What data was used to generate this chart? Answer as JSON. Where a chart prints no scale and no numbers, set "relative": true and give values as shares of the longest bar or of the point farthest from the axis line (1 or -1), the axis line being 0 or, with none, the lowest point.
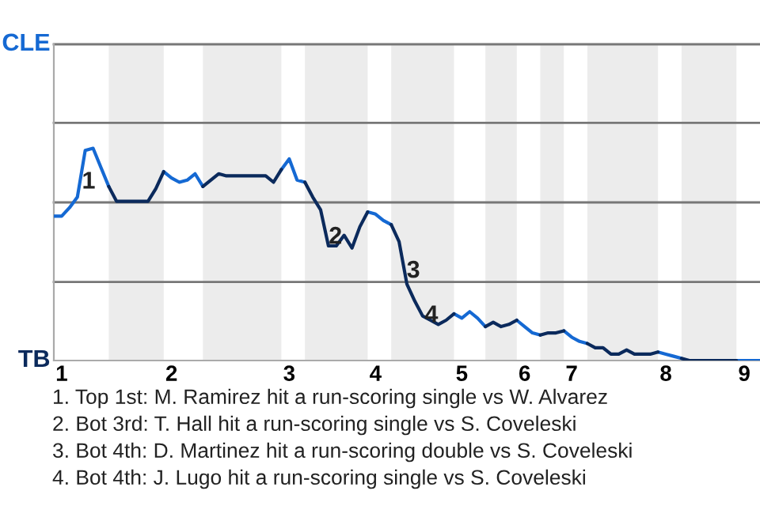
{
  "chart_data": {
    "type": "line",
    "relative": true,
    "categories": [
      null,
      "1",
      null,
      null,
      null,
      null,
      null,
      null,
      null,
      null,
      null,
      null,
      null,
      null,
      null,
      "2",
      null,
      null,
      null,
      null,
      null,
      null,
      null,
      null,
      null,
      null,
      null,
      null,
      null,
      null,
      "3",
      null,
      null,
      null,
      null,
      null,
      null,
      null,
      null,
      null,
      null,
      "4",
      null,
      null,
      null,
      null,
      null,
      null,
      null,
      null,
      null,
      null,
      "5",
      null,
      null,
      null,
      null,
      null,
      null,
      null,
      "6",
      null,
      null,
      null,
      null,
      null,
      "7",
      null,
      null,
      null,
      null,
      null,
      null,
      null,
      null,
      null,
      null,
      null,
      "8",
      null,
      null,
      null,
      null,
      null,
      null,
      null,
      null,
      null,
      "9",
      null,
      null
    ],
    "ref_lines": [
      {
        "axis": "y",
        "value": 0.37
      },
      {
        "axis": "y",
        "value": 0.745
      },
      {
        "axis": "y",
        "value": 1.12
      },
      {
        "axis": "y",
        "value": 1.49
      }
    ],
    "legend": "left",
    "marker": "none",
    "line_style": "solid",
    "series": [
      {
        "name": "CLE",
        "color": "#1569d3",
        "values": [
          0.68,
          0.68,
          0.72,
          0.77,
          0.99,
          1,
          0.91,
          0.82,
          null,
          null,
          null,
          null,
          null,
          null,
          0.89,
          0.86,
          0.84,
          0.85,
          0.88,
          0.82,
          null,
          null,
          null,
          null,
          null,
          null,
          null,
          null,
          null,
          0.9,
          0.95,
          0.85,
          0.84,
          null,
          null,
          null,
          null,
          null,
          null,
          null,
          0.7,
          0.69,
          0.66,
          0.64,
          null,
          null,
          null,
          null,
          null,
          null,
          null,
          0.22,
          0.2,
          0.23,
          0.2,
          0.16,
          null,
          null,
          null,
          0.19,
          0.16,
          0.13,
          0.12,
          null,
          null,
          0.14,
          0.11,
          0.09,
          0.08,
          null,
          null,
          null,
          null,
          null,
          null,
          null,
          null,
          0.04,
          0.03,
          0.02,
          0.01,
          null,
          null,
          null,
          null,
          null,
          null,
          0,
          0,
          0,
          0
        ]
      },
      {
        "name": "TB",
        "color": "#0b2a5c",
        "values": [
          null,
          null,
          null,
          null,
          null,
          null,
          null,
          0.82,
          0.75,
          0.75,
          0.75,
          0.75,
          0.75,
          0.81,
          0.89,
          null,
          null,
          null,
          null,
          0.82,
          0.85,
          0.88,
          0.87,
          0.87,
          0.87,
          0.87,
          0.87,
          0.87,
          0.84,
          0.9,
          null,
          null,
          0.84,
          0.77,
          0.71,
          0.54,
          0.54,
          0.59,
          0.53,
          0.63,
          0.7,
          null,
          null,
          0.64,
          0.56,
          0.36,
          0.28,
          0.21,
          0.19,
          0.17,
          0.19,
          0.22,
          null,
          null,
          null,
          0.16,
          0.18,
          0.16,
          0.17,
          0.19,
          null,
          null,
          0.12,
          0.13,
          0.13,
          0.14,
          null,
          null,
          0.08,
          0.06,
          0.06,
          0.03,
          0.03,
          0.05,
          0.03,
          0.03,
          0.03,
          0.04,
          null,
          null,
          0.01,
          0,
          0,
          0,
          0,
          0,
          0,
          0,
          null,
          null,
          null
        ]
      }
    ],
    "annotations": [
      {
        "text": "1",
        "y": 0.84
      },
      {
        "text": "2",
        "y": 0.58
      },
      {
        "text": "3",
        "y": 0.42
      },
      {
        "text": "4",
        "y": 0.21
      },
      "1. Top 1st: M. Ramirez hit a run-scoring single vs W. Alvarez",
      "2. Bot 3rd: T. Hall hit a run-scoring single vs S. Coveleski",
      "3. Bot 4th: D. Martinez hit a run-scoring double vs S. Coveleski",
      "4. Bot 4th: J. Lugo hit a run-scoring single vs S. Coveleski"
    ]
  }
}
